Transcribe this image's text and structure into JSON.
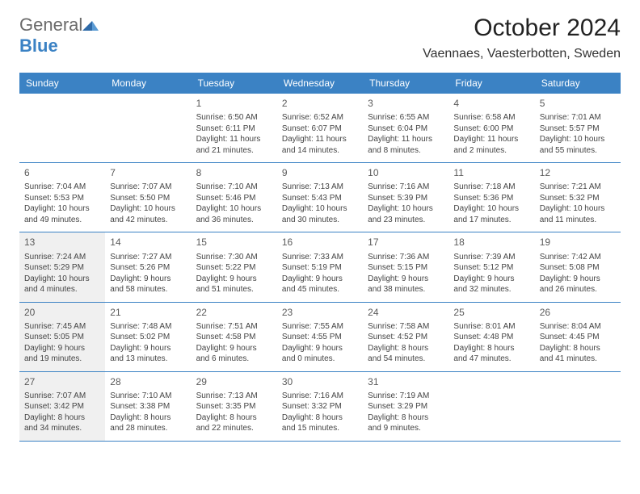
{
  "logo": {
    "word1": "General",
    "word2": "Blue"
  },
  "title": "October 2024",
  "location": "Vaennaes, Vaesterbotten, Sweden",
  "colors": {
    "header_bg": "#3b82c4",
    "header_text": "#ffffff",
    "page_bg": "#ffffff",
    "shaded_cell_bg": "#f0f0f0",
    "text": "#444444",
    "daynum": "#5a5a5a",
    "rule": "#3b82c4"
  },
  "typography": {
    "title_fontsize": 30,
    "location_fontsize": 16,
    "dayhead_fontsize": 12,
    "daynum_fontsize": 12,
    "cell_fontsize": 10
  },
  "day_names": [
    "Sunday",
    "Monday",
    "Tuesday",
    "Wednesday",
    "Thursday",
    "Friday",
    "Saturday"
  ],
  "weeks": [
    [
      {
        "empty": true
      },
      {
        "empty": true
      },
      {
        "n": "1",
        "sr": "Sunrise: 6:50 AM",
        "ss": "Sunset: 6:11 PM",
        "dl": "Daylight: 11 hours and 21 minutes."
      },
      {
        "n": "2",
        "sr": "Sunrise: 6:52 AM",
        "ss": "Sunset: 6:07 PM",
        "dl": "Daylight: 11 hours and 14 minutes."
      },
      {
        "n": "3",
        "sr": "Sunrise: 6:55 AM",
        "ss": "Sunset: 6:04 PM",
        "dl": "Daylight: 11 hours and 8 minutes."
      },
      {
        "n": "4",
        "sr": "Sunrise: 6:58 AM",
        "ss": "Sunset: 6:00 PM",
        "dl": "Daylight: 11 hours and 2 minutes."
      },
      {
        "n": "5",
        "sr": "Sunrise: 7:01 AM",
        "ss": "Sunset: 5:57 PM",
        "dl": "Daylight: 10 hours and 55 minutes."
      }
    ],
    [
      {
        "n": "6",
        "sr": "Sunrise: 7:04 AM",
        "ss": "Sunset: 5:53 PM",
        "dl": "Daylight: 10 hours and 49 minutes."
      },
      {
        "n": "7",
        "sr": "Sunrise: 7:07 AM",
        "ss": "Sunset: 5:50 PM",
        "dl": "Daylight: 10 hours and 42 minutes."
      },
      {
        "n": "8",
        "sr": "Sunrise: 7:10 AM",
        "ss": "Sunset: 5:46 PM",
        "dl": "Daylight: 10 hours and 36 minutes."
      },
      {
        "n": "9",
        "sr": "Sunrise: 7:13 AM",
        "ss": "Sunset: 5:43 PM",
        "dl": "Daylight: 10 hours and 30 minutes."
      },
      {
        "n": "10",
        "sr": "Sunrise: 7:16 AM",
        "ss": "Sunset: 5:39 PM",
        "dl": "Daylight: 10 hours and 23 minutes."
      },
      {
        "n": "11",
        "sr": "Sunrise: 7:18 AM",
        "ss": "Sunset: 5:36 PM",
        "dl": "Daylight: 10 hours and 17 minutes."
      },
      {
        "n": "12",
        "sr": "Sunrise: 7:21 AM",
        "ss": "Sunset: 5:32 PM",
        "dl": "Daylight: 10 hours and 11 minutes."
      }
    ],
    [
      {
        "n": "13",
        "shaded": true,
        "sr": "Sunrise: 7:24 AM",
        "ss": "Sunset: 5:29 PM",
        "dl": "Daylight: 10 hours and 4 minutes."
      },
      {
        "n": "14",
        "sr": "Sunrise: 7:27 AM",
        "ss": "Sunset: 5:26 PM",
        "dl": "Daylight: 9 hours and 58 minutes."
      },
      {
        "n": "15",
        "sr": "Sunrise: 7:30 AM",
        "ss": "Sunset: 5:22 PM",
        "dl": "Daylight: 9 hours and 51 minutes."
      },
      {
        "n": "16",
        "sr": "Sunrise: 7:33 AM",
        "ss": "Sunset: 5:19 PM",
        "dl": "Daylight: 9 hours and 45 minutes."
      },
      {
        "n": "17",
        "sr": "Sunrise: 7:36 AM",
        "ss": "Sunset: 5:15 PM",
        "dl": "Daylight: 9 hours and 38 minutes."
      },
      {
        "n": "18",
        "sr": "Sunrise: 7:39 AM",
        "ss": "Sunset: 5:12 PM",
        "dl": "Daylight: 9 hours and 32 minutes."
      },
      {
        "n": "19",
        "sr": "Sunrise: 7:42 AM",
        "ss": "Sunset: 5:08 PM",
        "dl": "Daylight: 9 hours and 26 minutes."
      }
    ],
    [
      {
        "n": "20",
        "shaded": true,
        "sr": "Sunrise: 7:45 AM",
        "ss": "Sunset: 5:05 PM",
        "dl": "Daylight: 9 hours and 19 minutes."
      },
      {
        "n": "21",
        "sr": "Sunrise: 7:48 AM",
        "ss": "Sunset: 5:02 PM",
        "dl": "Daylight: 9 hours and 13 minutes."
      },
      {
        "n": "22",
        "sr": "Sunrise: 7:51 AM",
        "ss": "Sunset: 4:58 PM",
        "dl": "Daylight: 9 hours and 6 minutes."
      },
      {
        "n": "23",
        "sr": "Sunrise: 7:55 AM",
        "ss": "Sunset: 4:55 PM",
        "dl": "Daylight: 9 hours and 0 minutes."
      },
      {
        "n": "24",
        "sr": "Sunrise: 7:58 AM",
        "ss": "Sunset: 4:52 PM",
        "dl": "Daylight: 8 hours and 54 minutes."
      },
      {
        "n": "25",
        "sr": "Sunrise: 8:01 AM",
        "ss": "Sunset: 4:48 PM",
        "dl": "Daylight: 8 hours and 47 minutes."
      },
      {
        "n": "26",
        "sr": "Sunrise: 8:04 AM",
        "ss": "Sunset: 4:45 PM",
        "dl": "Daylight: 8 hours and 41 minutes."
      }
    ],
    [
      {
        "n": "27",
        "shaded": true,
        "sr": "Sunrise: 7:07 AM",
        "ss": "Sunset: 3:42 PM",
        "dl": "Daylight: 8 hours and 34 minutes."
      },
      {
        "n": "28",
        "sr": "Sunrise: 7:10 AM",
        "ss": "Sunset: 3:38 PM",
        "dl": "Daylight: 8 hours and 28 minutes."
      },
      {
        "n": "29",
        "sr": "Sunrise: 7:13 AM",
        "ss": "Sunset: 3:35 PM",
        "dl": "Daylight: 8 hours and 22 minutes."
      },
      {
        "n": "30",
        "sr": "Sunrise: 7:16 AM",
        "ss": "Sunset: 3:32 PM",
        "dl": "Daylight: 8 hours and 15 minutes."
      },
      {
        "n": "31",
        "sr": "Sunrise: 7:19 AM",
        "ss": "Sunset: 3:29 PM",
        "dl": "Daylight: 8 hours and 9 minutes."
      },
      {
        "empty": true
      },
      {
        "empty": true
      }
    ]
  ]
}
